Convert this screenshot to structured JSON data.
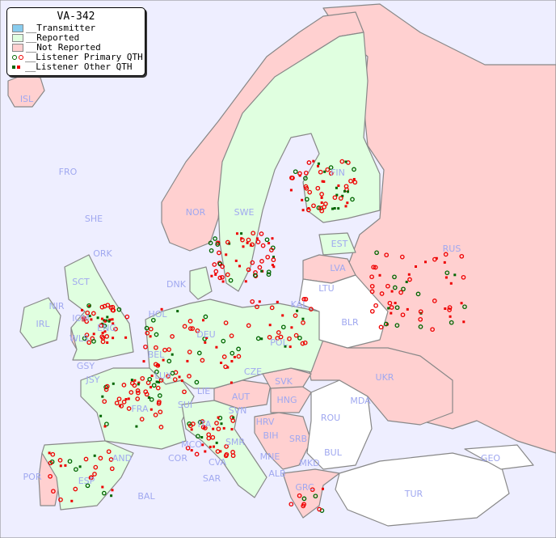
{
  "legend": {
    "title": "VA-342",
    "items": [
      {
        "label": "__Transmitter",
        "color": "#88ccee"
      },
      {
        "label": "__Reported",
        "color": "#e0ffe0"
      },
      {
        "label": "__Not Reported",
        "color": "#ffd0d0"
      },
      {
        "label": "__Listener Primary QTH",
        "colors": [
          "#006600",
          "#ee0000"
        ]
      },
      {
        "label": "__Listener Other QTH",
        "colors": [
          "#006600",
          "#ee0000"
        ]
      }
    ]
  },
  "colors": {
    "sea": "#eeeeff",
    "reported": "#e0ffe0",
    "not_reported": "#ffd0d0",
    "other": "#ffffff",
    "border": "#888888",
    "label": "#a0a8f0"
  },
  "countries": {
    "ISL": "ISL",
    "FRO": "FRO",
    "SHE": "SHE",
    "ORK": "ORK",
    "NOR": "NOR",
    "SWE": "SWE",
    "FIN": "FIN",
    "EST": "EST",
    "RUS": "RUS",
    "LVA": "LVA",
    "LTU": "LTU",
    "DNK": "DNK",
    "IRL": "IRL",
    "NIR": "NIR",
    "SCT": "SCT",
    "IOM": "IOM",
    "ENG": "ENG",
    "WLS": "WLS",
    "GSY": "GSY",
    "JSY": "JSY",
    "KAL": "KAL",
    "HOL": "HOL",
    "BEL": "BEL",
    "DEU": "DEU",
    "POL": "POL",
    "BLR": "BLR",
    "LUX": "LUX",
    "CZE": "CZE",
    "SVK": "SVK",
    "UKR": "UKR",
    "FRA": "FRA",
    "SUI": "SUI",
    "LIE": "LIE",
    "AUT": "AUT",
    "HNG": "HNG",
    "MDA": "MDA",
    "SVN": "SVN",
    "HRV": "HRV",
    "ROU": "ROU",
    "ITA": "ITA",
    "BIH": "BIH",
    "SRB": "SRB",
    "SMR": "SMR",
    "MCO": "MCO",
    "COR": "COR",
    "CVA": "CVA",
    "MNE": "MNE",
    "BUL": "BUL",
    "GEO": "GEO",
    "AND": "AND",
    "ALB": "ALB",
    "MKD": "MKD",
    "POR": "POR",
    "ESP": "ESP",
    "SAR": "SAR",
    "BAL": "BAL",
    "GRC": "GRC",
    "TUR": "TUR"
  }
}
